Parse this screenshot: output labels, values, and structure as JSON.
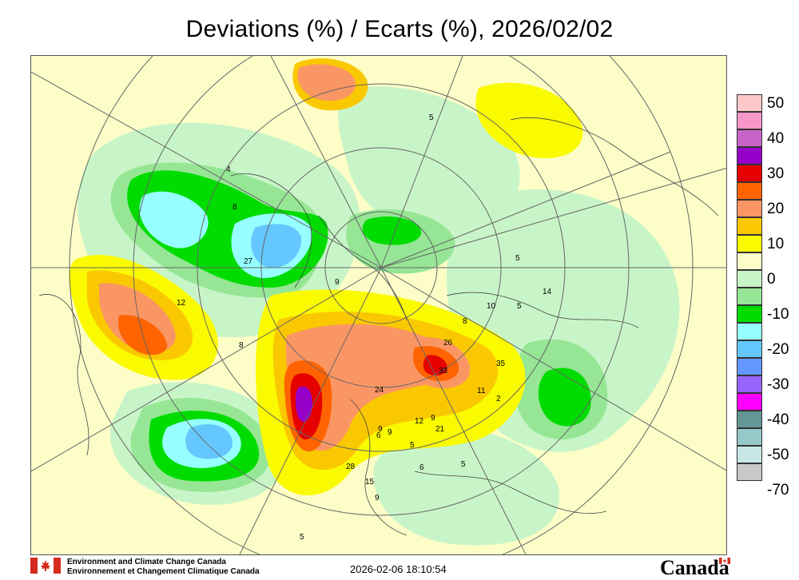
{
  "title": "Deviations (%) / Ecarts (%), 2026/02/02",
  "footer": {
    "agency_en": "Environment and Climate Change Canada",
    "agency_fr": "Environnement et Changement Climatique Canada",
    "timestamp": "2026-02-06 18:10:54",
    "wordmark": "Canada"
  },
  "icons": {
    "flag": "canada-flag-icon"
  },
  "colors": {
    "accent_red": "#d52b1e"
  },
  "legend": [
    {
      "label": "50",
      "color": "#ffc8c8"
    },
    {
      "label": "",
      "color": "#f796c8"
    },
    {
      "label": "40",
      "color": "#c864c8"
    },
    {
      "label": "",
      "color": "#9600c8"
    },
    {
      "label": "30",
      "color": "#e60000"
    },
    {
      "label": "",
      "color": "#ff6400"
    },
    {
      "label": "20",
      "color": "#fa9664"
    },
    {
      "label": "",
      "color": "#fac800"
    },
    {
      "label": "10",
      "color": "#fafa00"
    },
    {
      "label": "",
      "color": "#fdfdc8"
    },
    {
      "label": "0",
      "color": "#c8f5c8"
    },
    {
      "label": "",
      "color": "#96e696"
    },
    {
      "label": "-10",
      "color": "#00dc00"
    },
    {
      "label": "",
      "color": "#96ffff"
    },
    {
      "label": "-20",
      "color": "#64c8ff"
    },
    {
      "label": "",
      "color": "#6496ff"
    },
    {
      "label": "-30",
      "color": "#9664ff"
    },
    {
      "label": "",
      "color": "#ff00ff"
    },
    {
      "label": "-40",
      "color": "#649696"
    },
    {
      "label": "",
      "color": "#96c8c8"
    },
    {
      "label": "-50",
      "color": "#c8e6e6"
    },
    {
      "label": "",
      "color": "#c8c8c8"
    },
    {
      "label": "-70",
      "color": ""
    }
  ],
  "station_values": [
    {
      "text": "4"
    },
    {
      "text": "5"
    },
    {
      "text": "8"
    },
    {
      "text": "27"
    },
    {
      "text": "12"
    },
    {
      "text": "8"
    },
    {
      "text": "5"
    },
    {
      "text": "14"
    },
    {
      "text": "5"
    },
    {
      "text": "10"
    },
    {
      "text": "8"
    },
    {
      "text": "26"
    },
    {
      "text": "35"
    },
    {
      "text": "33"
    },
    {
      "text": "11"
    },
    {
      "text": "2"
    },
    {
      "text": "24"
    },
    {
      "text": "9"
    },
    {
      "text": "12"
    },
    {
      "text": "21"
    },
    {
      "text": "5"
    },
    {
      "text": "9"
    },
    {
      "text": "6"
    },
    {
      "text": "28"
    },
    {
      "text": "15"
    },
    {
      "text": "9"
    },
    {
      "text": "9"
    },
    {
      "text": "6"
    },
    {
      "text": "5"
    },
    {
      "text": "5"
    },
    {
      "text": "9"
    }
  ]
}
